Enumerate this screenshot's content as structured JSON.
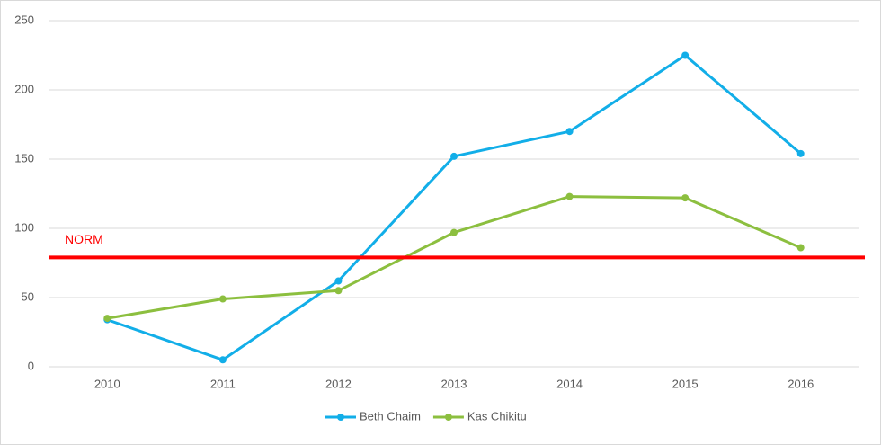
{
  "chart_data": {
    "type": "line",
    "categories": [
      "2010",
      "2011",
      "2012",
      "2013",
      "2014",
      "2015",
      "2016"
    ],
    "series": [
      {
        "name": "Beth Chaim",
        "color": "#12aee8",
        "values": [
          34,
          5,
          62,
          152,
          170,
          225,
          154
        ]
      },
      {
        "name": "Kas Chikitu",
        "color": "#8cbf3f",
        "values": [
          35,
          49,
          55,
          97,
          123,
          122,
          86
        ]
      }
    ],
    "reference_line": {
      "label": "NORM",
      "value": 79,
      "color": "#ff0000"
    },
    "ylim": [
      0,
      250
    ],
    "yticks": [
      0,
      50,
      100,
      150,
      200,
      250
    ],
    "grid": true,
    "legend": "bottom"
  }
}
